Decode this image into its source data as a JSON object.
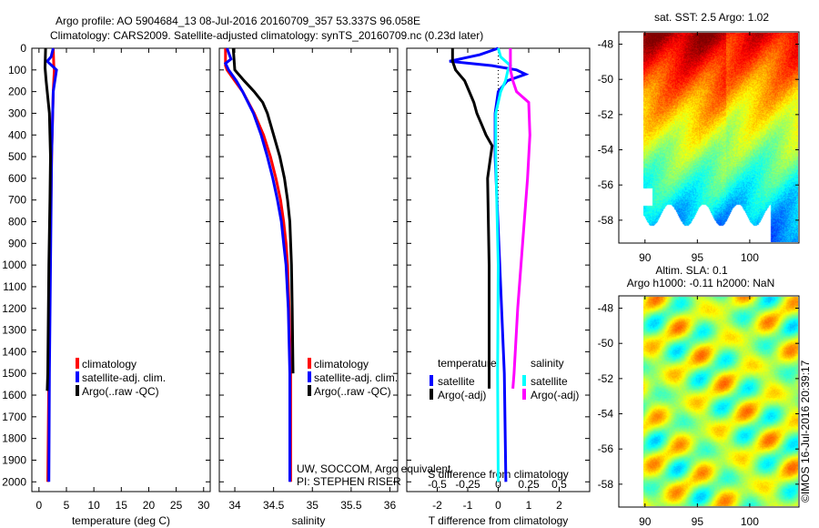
{
  "title_line1": "Argo profile: AO 5904684_13 08-Jul-2016 20160709_357 53.337S 96.058E",
  "title_line2": "Climatology: CARS2009. Satellite-adjusted climatology: synTS_20160709.nc (0.23d later)",
  "colors": {
    "climatology": "#ff0000",
    "satellite": "#0000ff",
    "argo": "#000000",
    "sal_satellite": "#00ffff",
    "sal_argo": "#ff00ff"
  },
  "chart_data": [
    {
      "type": "line",
      "name": "temperature-profile",
      "xlabel": "temperature (deg C)",
      "ylabel": "",
      "xlim": [
        -1.3,
        31.2
      ],
      "ylim": [
        2045,
        0
      ],
      "xticks": [
        0,
        5,
        10,
        15,
        20,
        25,
        30
      ],
      "yticks": [
        0,
        100,
        200,
        300,
        400,
        500,
        600,
        700,
        800,
        900,
        1000,
        1100,
        1200,
        1300,
        1400,
        1500,
        1600,
        1700,
        1800,
        1900,
        2000
      ],
      "legend": [
        "climatology",
        "satellite-adj. clim.",
        "Argo(..raw -QC)"
      ],
      "series": [
        {
          "name": "climatology",
          "color": "#ff0000",
          "depth": [
            0,
            80,
            100,
            200,
            500,
            1000,
            1500,
            2000
          ],
          "values": [
            2.6,
            2.7,
            2.8,
            2.6,
            2.3,
            2.0,
            1.8,
            1.6
          ]
        },
        {
          "name": "satellite-adj. clim.",
          "color": "#0000ff",
          "depth": [
            0,
            40,
            60,
            100,
            150,
            200,
            500,
            1000,
            1500,
            2000
          ],
          "values": [
            2.6,
            2.2,
            1.5,
            3.2,
            2.9,
            2.6,
            2.3,
            2.1,
            1.9,
            1.8
          ]
        },
        {
          "name": "Argo(..raw -QC)",
          "color": "#000000",
          "depth": [
            0,
            90,
            150,
            200,
            250,
            300,
            400,
            500,
            700,
            1000,
            1500,
            1580
          ],
          "values": [
            1.2,
            1.1,
            1.3,
            1.5,
            1.7,
            1.9,
            2.0,
            2.1,
            2.0,
            1.8,
            1.6,
            1.5
          ]
        }
      ]
    },
    {
      "type": "line",
      "name": "salinity-profile",
      "xlabel": "salinity",
      "xlim": [
        33.8,
        36.1
      ],
      "ylim": [
        2045,
        0
      ],
      "xticks": [
        34,
        34.5,
        35,
        35.5,
        36
      ],
      "legend": [
        "climatology",
        "satellite-adj. clim.",
        "Argo(..raw -QC)"
      ],
      "series": [
        {
          "name": "climatology",
          "color": "#ff0000",
          "depth": [
            0,
            80,
            100,
            150,
            200,
            300,
            400,
            500,
            600,
            700,
            800,
            900,
            1000,
            1200,
            1500,
            2000
          ],
          "values": [
            33.88,
            33.88,
            33.9,
            34.0,
            34.1,
            34.25,
            34.37,
            34.46,
            34.53,
            34.59,
            34.63,
            34.66,
            34.68,
            34.7,
            34.72,
            34.72
          ]
        },
        {
          "name": "satellite-adj. clim.",
          "color": "#0000ff",
          "depth": [
            0,
            50,
            70,
            100,
            150,
            200,
            300,
            400,
            500,
            600,
            700,
            800,
            900,
            1000,
            1200,
            1500,
            2000
          ],
          "values": [
            33.9,
            33.95,
            33.88,
            33.92,
            34.02,
            34.1,
            34.24,
            34.34,
            34.42,
            34.49,
            34.55,
            34.6,
            34.63,
            34.66,
            34.69,
            34.71,
            34.71
          ]
        },
        {
          "name": "Argo(..raw -QC)",
          "color": "#000000",
          "depth": [
            0,
            100,
            150,
            200,
            250,
            300,
            400,
            500,
            600,
            700,
            800,
            1000,
            1200,
            1500
          ],
          "values": [
            33.98,
            34.0,
            34.12,
            34.25,
            34.36,
            34.42,
            34.5,
            34.58,
            34.64,
            34.68,
            34.71,
            34.73,
            34.74,
            34.75
          ]
        }
      ]
    },
    {
      "type": "line",
      "name": "difference-profile",
      "xlabel": "T difference from climatology",
      "x2label": "S difference from climatology",
      "xlim": [
        -3,
        3
      ],
      "xticks": [
        -2,
        -1,
        0,
        1,
        2
      ],
      "x2ticks": [
        "-0.5",
        "-0.25",
        "0",
        "0.25",
        "0.5"
      ],
      "ylim": [
        2045,
        0
      ],
      "legend_temperature_title": "temperature",
      "legend_salinity_title": "salinity",
      "legend": [
        "satellite",
        "Argo(-adj)",
        "satellite",
        "Argo(-adj)"
      ],
      "series": [
        {
          "name": "temperature satellite",
          "color": "#0000ff",
          "unit": "T",
          "depth": [
            0,
            30,
            60,
            80,
            100,
            120,
            150,
            200,
            300,
            500,
            1000,
            1500,
            2000
          ],
          "values": [
            0,
            -0.6,
            -1.6,
            -0.2,
            0.6,
            0.9,
            0.3,
            0,
            -0.1,
            -0.1,
            0.05,
            0.2,
            0.25
          ]
        },
        {
          "name": "temperature Argo(-adj)",
          "color": "#000000",
          "unit": "T",
          "depth": [
            0,
            60,
            100,
            150,
            200,
            250,
            300,
            350,
            400,
            450,
            500,
            600,
            1000,
            1500,
            1570
          ],
          "values": [
            -1.5,
            -1.5,
            -1.4,
            -1.1,
            -0.95,
            -0.8,
            -0.7,
            -0.55,
            -0.4,
            -0.2,
            -0.25,
            -0.35,
            -0.3,
            -0.3,
            -0.3
          ]
        },
        {
          "name": "salinity satellite",
          "color": "#00ffff",
          "unit": "S",
          "depth": [
            0,
            40,
            80,
            100,
            150,
            200,
            300,
            500,
            1000,
            1500,
            2000
          ],
          "values": [
            0,
            0.02,
            0.1,
            0.08,
            0.06,
            0.02,
            -0.02,
            -0.02,
            0,
            -0.005,
            0
          ]
        },
        {
          "name": "salinity Argo(-adj)",
          "color": "#ff00ff",
          "unit": "S",
          "depth": [
            0,
            100,
            150,
            200,
            250,
            400,
            600,
            900,
            1200,
            1500,
            1570
          ],
          "values": [
            0.1,
            0.1,
            0.12,
            0.15,
            0.25,
            0.26,
            0.24,
            0.2,
            0.16,
            0.13,
            0.12
          ]
        }
      ]
    },
    {
      "type": "heatmap",
      "name": "sst-map",
      "title": "sat. SST: 2.5 Argo: 1.02",
      "xticks": [
        90,
        95,
        100
      ],
      "yticks": [
        -48,
        -50,
        -52,
        -54,
        -56,
        -58
      ],
      "xlim": [
        87.5,
        104.7
      ],
      "ylim": [
        -59.3,
        -47.3
      ]
    },
    {
      "type": "heatmap",
      "name": "sla-map",
      "title_line1": "Altim. SLA: 0.1",
      "title_line2": "Argo h1000: -0.11 h2000: NaN",
      "xticks": [
        90,
        95,
        100
      ],
      "yticks": [
        -48,
        -50,
        -52,
        -54,
        -56,
        -58
      ],
      "xlim": [
        87.5,
        104.7
      ],
      "ylim": [
        -59.3,
        -47.3
      ]
    }
  ],
  "credit_line1": "UW, SOCCOM, Argo equivalent",
  "credit_line2": "PI: STEPHEN RISER",
  "timestamp": "©IMOS 16-Jul-2016 20:39:17"
}
